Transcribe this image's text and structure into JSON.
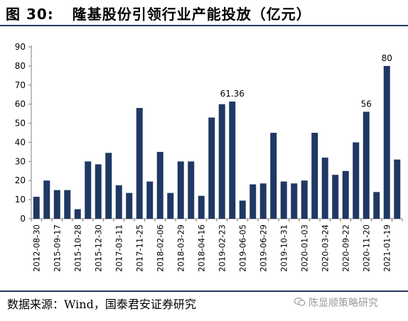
{
  "figure": {
    "label": "图 30:",
    "title": "隆基股份引领行业产能投放（亿元）"
  },
  "source": "数据来源：Wind，国泰君安证券研究",
  "watermark": "陈显顺策略研究",
  "colors": {
    "bar": "#1f3864",
    "rule": "#1f3864",
    "axis": "#7f7f7f"
  },
  "chart_data": {
    "type": "bar",
    "title": "",
    "xlabel": "",
    "ylabel": "",
    "ylim": [
      0,
      90
    ],
    "yticks": [
      0,
      10,
      20,
      30,
      40,
      50,
      60,
      70,
      80,
      90
    ],
    "grid": false,
    "legend": "none",
    "categories": [
      "2012-08-30",
      "",
      "2015-09-17",
      "",
      "2015-10-28",
      "",
      "2015-12-30",
      "",
      "2017-03-11",
      "",
      "2017-11-25",
      "",
      "2018-02-06",
      "",
      "2018-03-29",
      "",
      "2018-04-16",
      "",
      "2019-02-23",
      "",
      "2019-06-05",
      "",
      "2019-06-29",
      "",
      "2019-10-31",
      "",
      "2020-01-03",
      "",
      "2020-03-24",
      "",
      "2020-09-22",
      "",
      "2020-11-20",
      "",
      "2021-01-19",
      ""
    ],
    "values": [
      11.5,
      20,
      15,
      15,
      5,
      30,
      28.5,
      34.5,
      17.5,
      13.5,
      58,
      19.5,
      35,
      13.5,
      30,
      30,
      12,
      53,
      60,
      61.36,
      9.5,
      18,
      18.5,
      45,
      19.5,
      18.5,
      20,
      45,
      32,
      23,
      25,
      40,
      56,
      14,
      80,
      31
    ],
    "data_labels": [
      {
        "index": 19,
        "text": "61.36"
      },
      {
        "index": 32,
        "text": "56"
      },
      {
        "index": 34,
        "text": "80"
      }
    ]
  }
}
